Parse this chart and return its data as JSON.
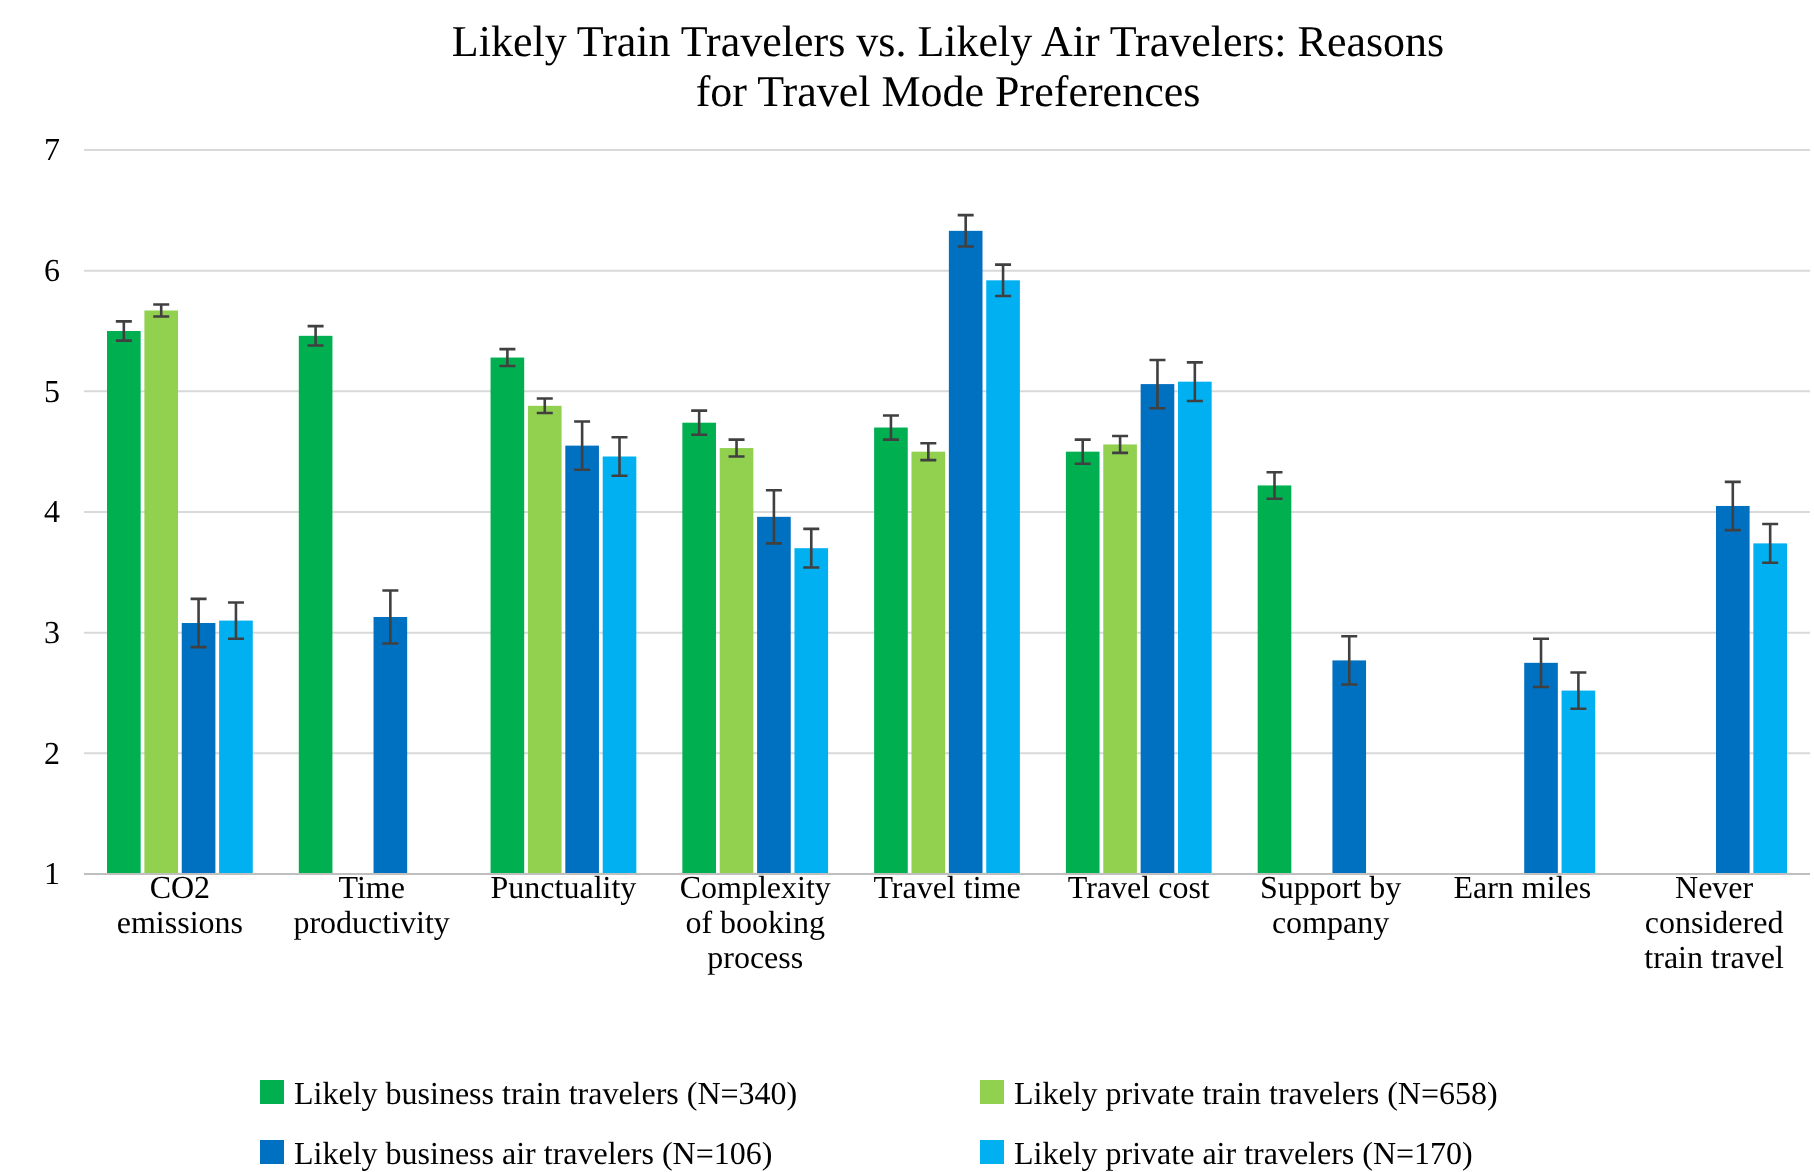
{
  "chart_data": {
    "type": "bar",
    "title": "Likely Train Travelers vs. Likely Air Travelers: Reasons for Travel Mode Preferences",
    "categories": [
      "CO2 emissions",
      "Time productivity",
      "Punctuality",
      "Complexity of booking process",
      "Travel time",
      "Travel cost",
      "Support by company",
      "Earn miles",
      "Never considered train travel"
    ],
    "series": [
      {
        "name": "Likely business train travelers (N=340)",
        "color": "#00b050",
        "values": [
          5.5,
          5.46,
          5.28,
          4.74,
          4.7,
          4.5,
          4.22,
          null,
          null
        ],
        "errors": [
          0.08,
          0.08,
          0.07,
          0.1,
          0.1,
          0.1,
          0.11,
          null,
          null
        ]
      },
      {
        "name": "Likely private train travelers (N=658)",
        "color": "#92d050",
        "values": [
          5.67,
          null,
          4.88,
          4.53,
          4.5,
          4.56,
          null,
          null,
          null
        ],
        "errors": [
          0.05,
          null,
          0.06,
          0.07,
          0.07,
          0.07,
          null,
          null,
          null
        ]
      },
      {
        "name": "Likely business air travelers (N=106)",
        "color": "#0070c0",
        "values": [
          3.08,
          3.13,
          4.55,
          3.96,
          6.33,
          5.06,
          2.77,
          2.75,
          4.05
        ],
        "errors": [
          0.2,
          0.22,
          0.2,
          0.22,
          0.13,
          0.2,
          0.2,
          0.2,
          0.2
        ]
      },
      {
        "name": "Likely private air travelers (N=170)",
        "color": "#00b0f0",
        "values": [
          3.1,
          null,
          4.46,
          3.7,
          5.92,
          5.08,
          null,
          2.52,
          3.74
        ],
        "errors": [
          0.15,
          null,
          0.16,
          0.16,
          0.13,
          0.16,
          null,
          0.15,
          0.16
        ]
      }
    ],
    "ylim": [
      1,
      7
    ],
    "yticks": [
      1,
      2,
      3,
      4,
      5,
      6,
      7
    ],
    "grid": "y",
    "legend": "bottom"
  }
}
